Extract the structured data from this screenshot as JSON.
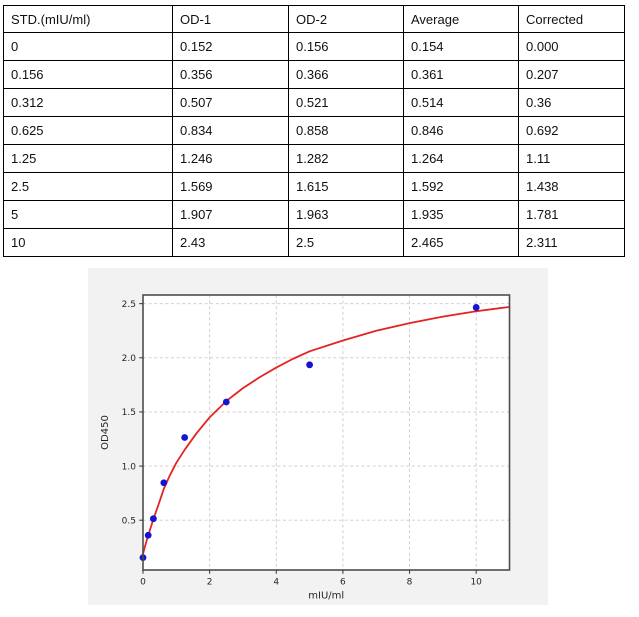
{
  "table": {
    "columns": [
      "STD.(mIU/ml)",
      "OD-1",
      "OD-2",
      "Average",
      "Corrected"
    ],
    "rows": [
      [
        "0",
        "0.152",
        "0.156",
        "0.154",
        "0.000"
      ],
      [
        "0.156",
        "0.356",
        "0.366",
        "0.361",
        "0.207"
      ],
      [
        "0.312",
        "0.507",
        "0.521",
        "0.514",
        "0.36"
      ],
      [
        "0.625",
        "0.834",
        "0.858",
        "0.846",
        "0.692"
      ],
      [
        "1.25",
        "1.246",
        "1.282",
        "1.264",
        "1.11"
      ],
      [
        "2.5",
        "1.569",
        "1.615",
        "1.592",
        "1.438"
      ],
      [
        "5",
        "1.907",
        "1.963",
        "1.935",
        "1.781"
      ],
      [
        "10",
        "2.43",
        "2.5",
        "2.465",
        "2.311"
      ]
    ]
  },
  "chart_data": {
    "type": "scatter",
    "title": "",
    "xlabel": "mIU/ml",
    "ylabel": "OD450",
    "xlim": [
      0,
      11
    ],
    "ylim": [
      0.04,
      2.58
    ],
    "grid": true,
    "legend": "none",
    "x_ticks": {
      "values": [
        0,
        2,
        4,
        6,
        8,
        10
      ],
      "labels": [
        "0",
        "2",
        "4",
        "6",
        "8",
        "10"
      ]
    },
    "y_ticks": {
      "values": [
        0.5,
        1.0,
        1.5,
        2.0,
        2.5
      ],
      "labels": [
        "0.5",
        "1.0",
        "1.5",
        "2.0",
        "2.5"
      ]
    },
    "series": [
      {
        "name": "fitted-curve",
        "kind": "line",
        "color": "#e42322",
        "width": 1.8,
        "x": [
          0,
          0.08,
          0.156,
          0.25,
          0.312,
          0.45,
          0.625,
          0.8,
          1.0,
          1.25,
          1.6,
          2.0,
          2.5,
          3.0,
          3.5,
          4.0,
          4.5,
          5.0,
          6.0,
          7.0,
          8.0,
          9.0,
          10.0,
          10.5,
          11.0
        ],
        "y": [
          0.19,
          0.28,
          0.36,
          0.45,
          0.51,
          0.63,
          0.79,
          0.91,
          1.03,
          1.15,
          1.3,
          1.45,
          1.6,
          1.72,
          1.82,
          1.91,
          1.99,
          2.06,
          2.16,
          2.25,
          2.32,
          2.38,
          2.43,
          2.45,
          2.47
        ]
      },
      {
        "name": "standard-points",
        "kind": "scatter",
        "color": "#1414d2",
        "marker_radius": 3.4,
        "x": [
          0,
          0.156,
          0.312,
          0.625,
          1.25,
          2.5,
          5,
          10
        ],
        "y": [
          0.154,
          0.361,
          0.514,
          0.846,
          1.264,
          1.592,
          1.935,
          2.465
        ]
      }
    ],
    "style": {
      "figure_bg": "#f2f2f2",
      "plot_bg": "#ffffff",
      "grid_color": "#c9c9c9",
      "spine_color": "#4d4d4d",
      "tick_color": "#333333",
      "text_color": "#262626"
    }
  }
}
